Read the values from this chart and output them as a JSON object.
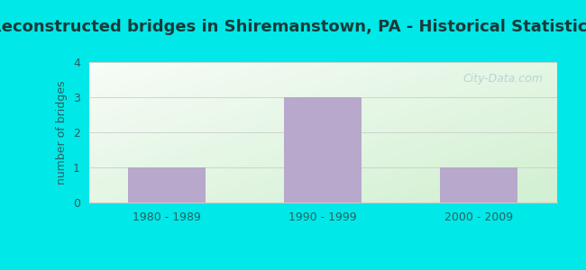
{
  "title": "Reconstructed bridges in Shiremanstown, PA - Historical Statistics",
  "categories": [
    "1980 - 1989",
    "1990 - 1999",
    "2000 - 2009"
  ],
  "values": [
    1,
    3,
    1
  ],
  "bar_color": "#b8a8cc",
  "ylabel": "number of bridges",
  "ylim": [
    0,
    4
  ],
  "yticks": [
    0,
    1,
    2,
    3,
    4
  ],
  "background_outer": "#00e8e8",
  "plot_bg_top_left": "#d4edd4",
  "plot_bg_top_right": "#f0f8f8",
  "plot_bg_bottom": "#e8f5e0",
  "title_fontsize": 13,
  "title_color": "#1a3a3a",
  "axis_label_color": "#2a6060",
  "tick_label_color": "#2a6060",
  "grid_color": "#cccccc",
  "watermark": "City-Data.com",
  "bar_width": 0.5
}
